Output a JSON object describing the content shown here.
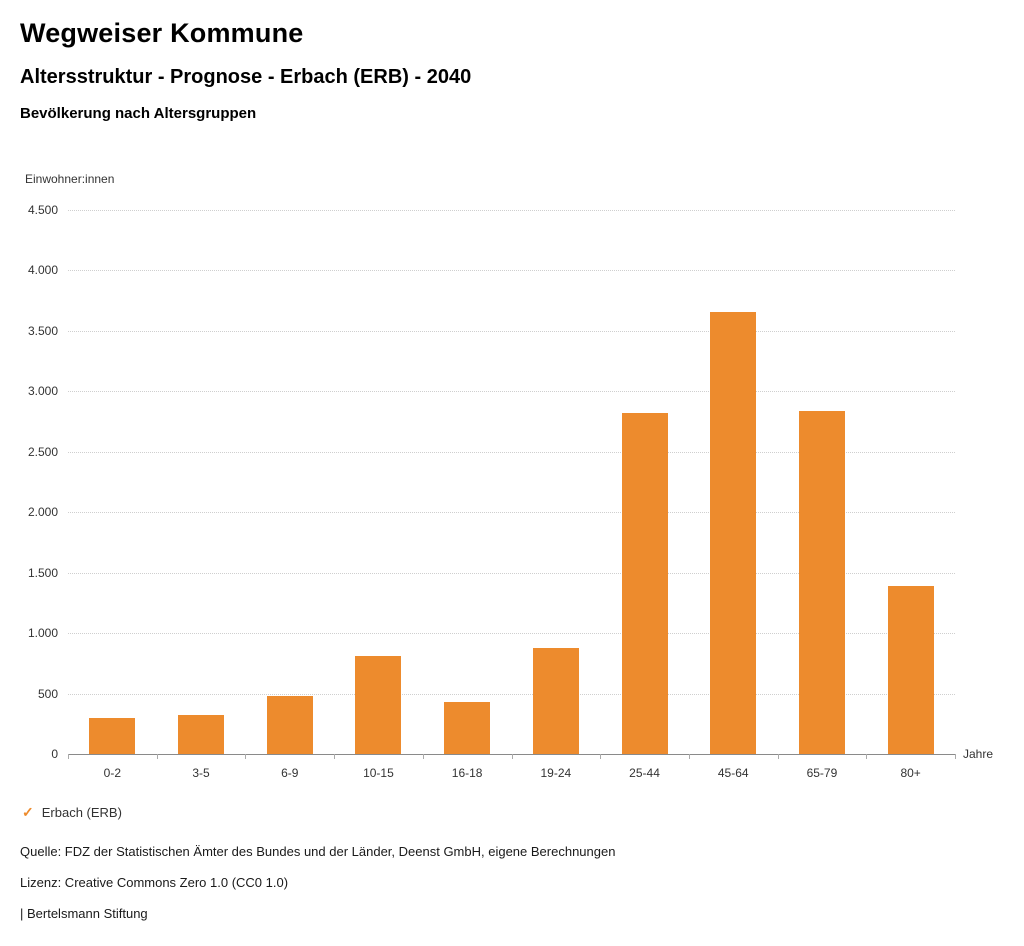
{
  "header": {
    "title": "Wegweiser Kommune",
    "subtitle": "Altersstruktur - Prognose - Erbach (ERB) - 2040",
    "chart_heading": "Bevölkerung nach Altersgruppen"
  },
  "chart_data": {
    "type": "bar",
    "title": "Bevölkerung nach Altersgruppen",
    "categories": [
      "0-2",
      "3-5",
      "6-9",
      "10-15",
      "16-18",
      "19-24",
      "25-44",
      "45-64",
      "65-79",
      "80+"
    ],
    "series": [
      {
        "name": "Erbach (ERB)",
        "color": "#ED8B2D",
        "values": [
          300,
          320,
          480,
          810,
          430,
          880,
          2820,
          3660,
          2840,
          1390
        ]
      }
    ],
    "ylabel": "Einwohner:innen",
    "xlabel": "Jahre",
    "ylim": [
      0,
      4500
    ],
    "ytick_step": 500,
    "ytick_labels": [
      "0",
      "500",
      "1.000",
      "1.500",
      "2.000",
      "2.500",
      "3.000",
      "3.500",
      "4.000",
      "4.500"
    ],
    "grid": true,
    "legend_position": "bottom-left"
  },
  "legend": {
    "items": [
      {
        "label": "Erbach (ERB)",
        "color": "#ED8B2D",
        "marker": "check-icon"
      }
    ]
  },
  "footer": {
    "source": "Quelle: FDZ der Statistischen Ämter des Bundes und der Länder, Deenst GmbH, eigene Berechnungen",
    "license": "Lizenz: Creative Commons Zero 1.0 (CC0 1.0)",
    "attribution": "| Bertelsmann Stiftung"
  }
}
